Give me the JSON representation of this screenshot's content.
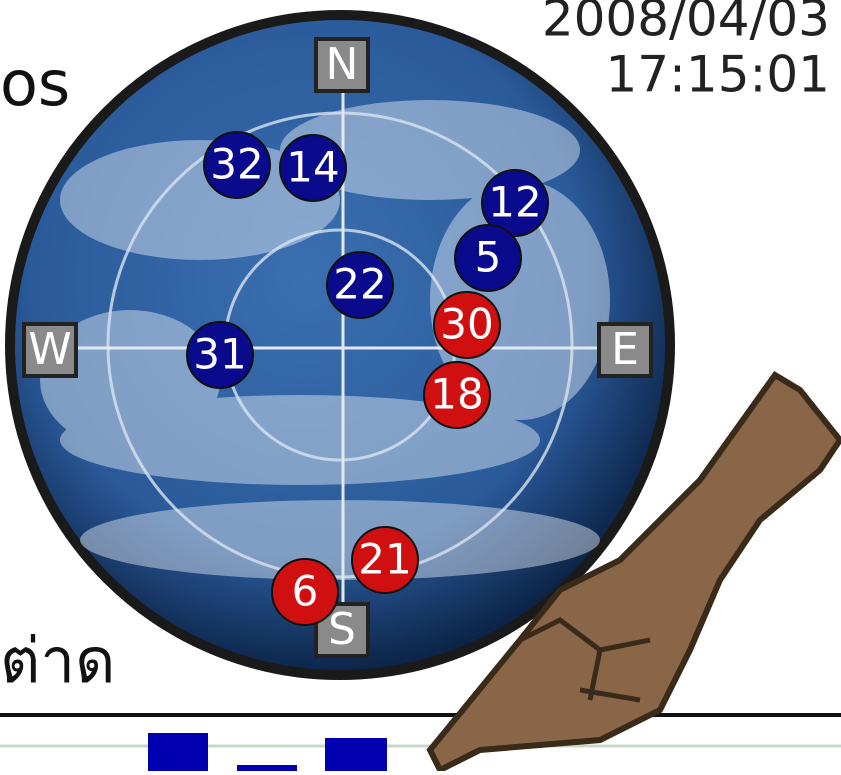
{
  "header": {
    "date": "2008/04/03",
    "time": "17:15:01",
    "left_label": "os"
  },
  "compass": {
    "north": "N",
    "east": "E",
    "south": "S",
    "west": "W"
  },
  "satellites": [
    {
      "label": "32",
      "color": "#0a0a8c"
    },
    {
      "label": "14",
      "color": "#0a0a8c"
    },
    {
      "label": "12",
      "color": "#0a0a8c"
    },
    {
      "label": "5",
      "color": "#0a0a8c"
    },
    {
      "label": "22",
      "color": "#0a0a8c"
    },
    {
      "label": "30",
      "color": "#d01010"
    },
    {
      "label": "31",
      "color": "#0a0a8c"
    },
    {
      "label": "18",
      "color": "#d01010"
    },
    {
      "label": "21",
      "color": "#d01010"
    },
    {
      "label": "6",
      "color": "#d01010"
    }
  ],
  "footer": {
    "text": "ต่าด"
  }
}
